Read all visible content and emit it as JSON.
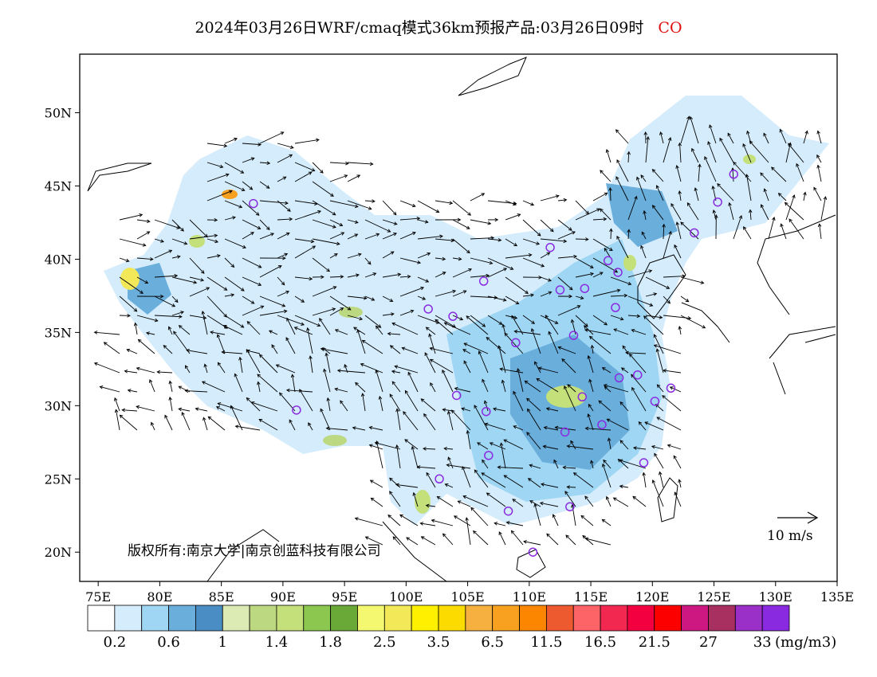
{
  "title": {
    "text": "2024年03月26日WRF/cmaq模式36km预报产品:03月26日09时",
    "species": "CO",
    "species_color": "#e01010"
  },
  "map": {
    "lat_labels": [
      "50N",
      "45N",
      "40N",
      "35N",
      "30N",
      "25N",
      "20N"
    ],
    "lon_labels": [
      "75E",
      "80E",
      "85E",
      "90E",
      "95E",
      "100E",
      "105E",
      "110E",
      "115E",
      "120E",
      "125E",
      "130E",
      "135E"
    ],
    "copyright": "版权所有:南京大学|南京创蓝科技有限公司",
    "wind_reference": "10 m/s",
    "station_marker_color": "#8a2be2",
    "stations": [
      {
        "lon": 87.6,
        "lat": 43.8
      },
      {
        "lon": 91.1,
        "lat": 29.7
      },
      {
        "lon": 101.8,
        "lat": 36.6
      },
      {
        "lon": 103.8,
        "lat": 36.1
      },
      {
        "lon": 106.3,
        "lat": 38.5
      },
      {
        "lon": 111.7,
        "lat": 40.8
      },
      {
        "lon": 112.5,
        "lat": 37.9
      },
      {
        "lon": 114.5,
        "lat": 38.0
      },
      {
        "lon": 116.4,
        "lat": 39.9
      },
      {
        "lon": 117.2,
        "lat": 39.1
      },
      {
        "lon": 117.0,
        "lat": 36.7
      },
      {
        "lon": 113.6,
        "lat": 34.8
      },
      {
        "lon": 108.9,
        "lat": 34.3
      },
      {
        "lon": 104.1,
        "lat": 30.7
      },
      {
        "lon": 106.5,
        "lat": 29.6
      },
      {
        "lon": 106.7,
        "lat": 26.6
      },
      {
        "lon": 102.7,
        "lat": 25.0
      },
      {
        "lon": 108.3,
        "lat": 22.8
      },
      {
        "lon": 113.3,
        "lat": 23.1
      },
      {
        "lon": 110.3,
        "lat": 20.0
      },
      {
        "lon": 112.9,
        "lat": 28.2
      },
      {
        "lon": 115.9,
        "lat": 28.7
      },
      {
        "lon": 114.3,
        "lat": 30.6
      },
      {
        "lon": 117.3,
        "lat": 31.9
      },
      {
        "lon": 118.8,
        "lat": 32.1
      },
      {
        "lon": 120.2,
        "lat": 30.3
      },
      {
        "lon": 121.5,
        "lat": 31.2
      },
      {
        "lon": 119.3,
        "lat": 26.1
      },
      {
        "lon": 123.4,
        "lat": 41.8
      },
      {
        "lon": 125.3,
        "lat": 43.9
      },
      {
        "lon": 126.6,
        "lat": 45.8
      }
    ]
  },
  "legend": {
    "unit": "(mg/m3)",
    "labels": [
      "0.2",
      "0.6",
      "1",
      "1.4",
      "1.8",
      "2.5",
      "3.5",
      "6.5",
      "11.5",
      "16.5",
      "21.5",
      "27",
      "33"
    ],
    "colors": [
      "#ffffff",
      "#d4ecfb",
      "#9fd6f3",
      "#6aaedc",
      "#4a8cc4",
      "#dcebb4",
      "#bcd880",
      "#c4e07a",
      "#8cc850",
      "#6aa838",
      "#f4f870",
      "#f2e858",
      "#fff000",
      "#fcdc00",
      "#f6b040",
      "#f8a020",
      "#fc8600",
      "#ee5a30",
      "#fc6468",
      "#f22850",
      "#f20040",
      "#fc0000",
      "#cc1880",
      "#a83060",
      "#9a30c8",
      "#8a2ae0"
    ]
  }
}
